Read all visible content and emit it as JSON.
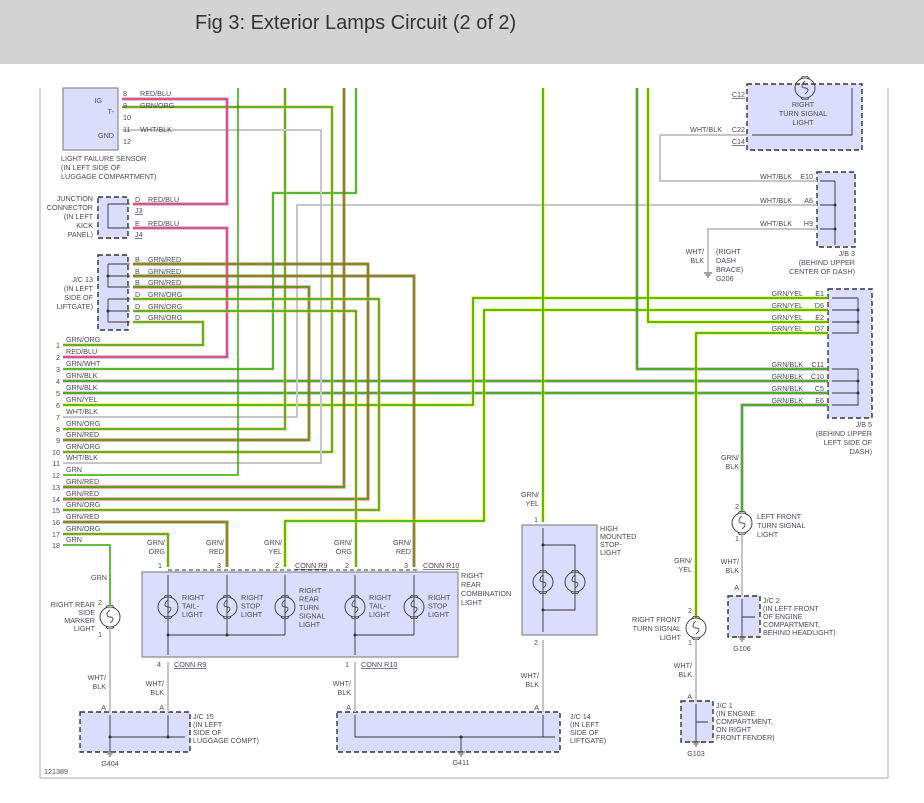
{
  "title": "Fig 3: Exterior Lamps Circuit (2 of 2)",
  "figure_number": "121389",
  "wire_colors": {
    "GRN": "#2ea800",
    "ORG": "#f2bb66",
    "RED": "#ff4d4d",
    "YEL": "#e6e600",
    "BLK": "#999999",
    "WHT": "#bfe3a8",
    "WHTBLK": "#c6c6c6",
    "REDBLU_RED": "#ff3344",
    "REDBLU_BLU": "#8c8cff"
  },
  "sensor": {
    "pins": [
      "8",
      "9",
      "10",
      "11",
      "12"
    ],
    "pin_names": [
      "IG",
      "T-",
      "GND"
    ],
    "wires": [
      "RED/BLU",
      "GRN/ORG",
      "WHT/BLK"
    ],
    "name": [
      "LIGHT FAILURE SENSOR",
      "(IN LEFT SIDE OF",
      "LUGGAGE COMPARTMENT)"
    ]
  },
  "junction_connector": {
    "name": [
      "JUNCTION",
      "CONNECTOR",
      "(IN LEFT",
      "KICK",
      "PANEL)"
    ],
    "pins": [
      "D",
      "E"
    ],
    "refs": [
      "J3",
      "J4"
    ],
    "wires": [
      "RED/BLU",
      "RED/BLU"
    ]
  },
  "jc13": {
    "name": [
      "J/C 13",
      "(IN LEFT",
      "SIDE OF",
      "LIFTGATE)"
    ],
    "pins": [
      "B",
      "B",
      "B",
      "D",
      "D",
      "D"
    ],
    "wires": [
      "GRN/RED",
      "GRN/RED",
      "GRN/RED",
      "GRN/ORG",
      "GRN/ORG",
      "GRN/ORG"
    ]
  },
  "rows": [
    {
      "n": "1",
      "w": "GRN/ORG"
    },
    {
      "n": "2",
      "w": "RED/BLU"
    },
    {
      "n": "3",
      "w": "GRN/WHT"
    },
    {
      "n": "4",
      "w": "GRN/BLK"
    },
    {
      "n": "5",
      "w": "GRN/BLK"
    },
    {
      "n": "6",
      "w": "GRN/YEL"
    },
    {
      "n": "7",
      "w": "WHT/BLK"
    },
    {
      "n": "8",
      "w": "GRN/ORG"
    },
    {
      "n": "9",
      "w": "GRN/RED"
    },
    {
      "n": "10",
      "w": "GRN/ORG"
    },
    {
      "n": "11",
      "w": "WHT/BLK"
    },
    {
      "n": "12",
      "w": "GRN"
    },
    {
      "n": "13",
      "w": "GRN/RED"
    },
    {
      "n": "14",
      "w": "GRN/RED"
    },
    {
      "n": "15",
      "w": "GRN/ORG"
    },
    {
      "n": "16",
      "w": "GRN/RED"
    },
    {
      "n": "17",
      "w": "GRN/ORG"
    },
    {
      "n": "18",
      "w": "GRN"
    }
  ],
  "right_turn_signal": {
    "name": [
      "RIGHT",
      "TURN SIGNAL",
      "LIGHT"
    ],
    "refs": [
      "C12",
      "C22",
      "C14"
    ],
    "wire": "WHT/BLK"
  },
  "jb3": {
    "pins": [
      "E10",
      "A6",
      "H9"
    ],
    "wires": [
      "WHT/BLK",
      "WHT/BLK",
      "WHT/BLK"
    ],
    "name": [
      "J/B 3",
      "(BEHIND UPPER",
      "CENTER OF DASH)"
    ]
  },
  "g206": {
    "wire": [
      "WHT/",
      "BLK"
    ],
    "name": [
      "(RIGHT",
      "DASH",
      "BRACE)"
    ],
    "id": "G206"
  },
  "jb5": {
    "pins": [
      "E1",
      "D6",
      "E2",
      "D7",
      "C11",
      "C10",
      "C5",
      "E6"
    ],
    "wires": [
      "GRN/YEL",
      "GRN/YEL",
      "GRN/YEL",
      "GRN/YEL",
      "GRN/BLK",
      "GRN/BLK",
      "GRN/BLK",
      "GRN/BLK"
    ],
    "name": [
      "J/B 5",
      "(BEHIND UPPER",
      "LEFT SIDE OF",
      "DASH)"
    ]
  },
  "combo": {
    "name": [
      "RIGHT",
      "REAR",
      "COMBINATION",
      "LIGHT"
    ],
    "top_wires": [
      [
        "GRN/",
        "ORG"
      ],
      [
        "GRN/",
        "RED"
      ],
      [
        "GRN/",
        "YEL"
      ],
      [
        "GRN/",
        "ORG"
      ],
      [
        "GRN/",
        "RED"
      ]
    ],
    "top_pins": [
      "1",
      "3",
      "2",
      "2",
      "3"
    ],
    "conn_r9": "CONN R9",
    "conn_r10": "CONN R10",
    "bulbs": [
      [
        "RIGHT",
        "TAIL-",
        "LIGHT"
      ],
      [
        "RIGHT",
        "STOP",
        "LIGHT"
      ],
      [
        "RIGHT",
        "REAR",
        "TURN",
        "SIGNAL",
        "LIGHT"
      ],
      [
        "RIGHT",
        "TAIL-",
        "LIGHT"
      ],
      [
        "RIGHT",
        "STOP",
        "LIGHT"
      ]
    ],
    "bottom_pins": [
      "4",
      "1"
    ]
  },
  "side_marker": {
    "wire": "GRN",
    "pins": [
      "2",
      "1"
    ],
    "name": [
      "RIGHT REAR",
      "SIDE",
      "MARKER",
      "LIGHT"
    ]
  },
  "ground_wires": [
    "WHT/",
    "BLK"
  ],
  "jc15": {
    "name": [
      "J/C 15",
      "(IN LEFT",
      "SIDE OF",
      "LUGGAGE COMPT)"
    ],
    "pin": "A",
    "ground": "G404"
  },
  "jc14": {
    "name": [
      "J/C 14",
      "(IN LEFT",
      "SIDE OF",
      "LIFTGATE)"
    ],
    "pin": "A",
    "ground": "G411"
  },
  "high_mount": {
    "wire": [
      "GRN/",
      "YEL"
    ],
    "pins": [
      "1",
      "2"
    ],
    "name": [
      "HIGH",
      "MOUNTED",
      "STOP-",
      "LIGHT"
    ]
  },
  "rf_turn": {
    "wire": [
      "GRN/",
      "YEL"
    ],
    "pins": [
      "2",
      "1"
    ],
    "name": [
      "RIGHT FRONT",
      "TURN SIGNAL",
      "LIGHT"
    ]
  },
  "lf_turn": {
    "wire": [
      "GRN/",
      "BLK"
    ],
    "pins": [
      "2",
      "1"
    ],
    "name": [
      "LEFT FRONT",
      "TURN SIGNAL",
      "LIGHT"
    ]
  },
  "jc1": {
    "pin": "A",
    "name": [
      "J/C 1",
      "(IN ENGINE",
      "COMPARTMENT,",
      "ON RIGHT",
      "FRONT FENDER)"
    ],
    "ground": "G103"
  },
  "jc2": {
    "pin": "A",
    "name": [
      "J/C 2",
      "(IN LEFT FRONT",
      "OF ENGINE",
      "COMPARTMENT,",
      "BEHIND HEADLIGHT)"
    ],
    "ground": "G106"
  }
}
